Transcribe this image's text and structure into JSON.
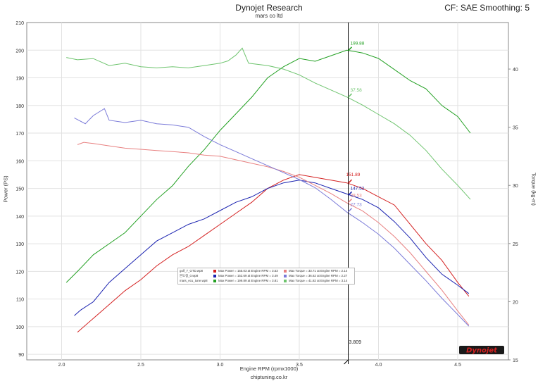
{
  "header": {
    "title": "Dynojet Research",
    "subtitle": "mars co ltd",
    "cf_label": "CF: SAE Smoothing: 5",
    "footer": "chiptuning.co.kr",
    "logo_text": "Dynojet"
  },
  "colors": {
    "red": "#d42020",
    "blue": "#1a22b0",
    "green": "#22a022",
    "red_light": "#e88080",
    "blue_light": "#7a7ad8",
    "green_light": "#6ec46e"
  },
  "chart_data": {
    "type": "line",
    "title": "Dynojet Research",
    "subtitle": "mars co ltd",
    "xlabel": "Engine RPM (rpmx1000)",
    "ylabel": "Power (PS)",
    "y2label": "Torque (kg-m)",
    "xlim": [
      1.78,
      4.82
    ],
    "ylim": [
      88,
      210
    ],
    "y2lim": [
      15,
      44
    ],
    "grid": true,
    "x_ticks": [
      "2.0",
      "2.5",
      "3.0",
      "3.5",
      "4.0",
      "4.5"
    ],
    "x_tick_values": [
      2.0,
      2.5,
      3.0,
      3.5,
      4.0,
      4.5
    ],
    "y_ticks": [
      "90",
      "100",
      "110",
      "120",
      "130",
      "140",
      "150",
      "160",
      "170",
      "180",
      "190",
      "200",
      "210"
    ],
    "y_tick_values": [
      90,
      100,
      110,
      120,
      130,
      140,
      150,
      160,
      170,
      180,
      190,
      200,
      210
    ],
    "y2_ticks": [
      "15",
      "20",
      "25",
      "30",
      "35",
      "40"
    ],
    "y2_tick_values": [
      15,
      20,
      25,
      30,
      35,
      40
    ],
    "cursor": {
      "rpm": 3.809,
      "label": "3.809"
    },
    "cursor_values": [
      {
        "label": "151.89",
        "y": 151.89,
        "axis": "left",
        "color": "#d42020"
      },
      {
        "label": "147.52",
        "y": 147.52,
        "axis": "left",
        "color": "#1a22b0"
      },
      {
        "label": "199.88",
        "y": 199.88,
        "axis": "left",
        "color": "#22a022"
      },
      {
        "label": "28.53",
        "y": 28.53,
        "axis": "right",
        "color": "#e88080"
      },
      {
        "label": "27.73",
        "y": 27.73,
        "axis": "right",
        "color": "#7a7ad8"
      },
      {
        "label": "37.58",
        "y": 37.58,
        "axis": "right",
        "color": "#6ec46e"
      }
    ],
    "legend": {
      "runs": [
        "golf_7_GTD.wp8",
        "본도정_0.wp8",
        "mars_ecu_tune.wp8"
      ],
      "power_text": [
        "Max Power = 155.03 at Engine RPM = 3.53",
        "Max Power = 152.69 at Engine RPM = 3.49",
        "Max Power = 199.89 at Engine RPM = 3.81"
      ],
      "torque_text": [
        "Max Torque = 33.71 at Engine RPM = 2.14",
        "Max Torque = 36.62 at Engine RPM = 2.27",
        "Max Torque = 41.82 at Engine RPM = 3.14"
      ],
      "placement": "lower-center"
    },
    "series": [
      {
        "name": "golf_7_GTD.wp8 Power",
        "axis": "left",
        "color": "#d42020",
        "x": [
          2.1,
          2.2,
          2.3,
          2.4,
          2.5,
          2.6,
          2.7,
          2.8,
          2.9,
          3.0,
          3.1,
          3.2,
          3.3,
          3.4,
          3.5,
          3.6,
          3.7,
          3.8,
          3.9,
          4.0,
          4.1,
          4.2,
          4.3,
          4.4,
          4.5,
          4.57
        ],
        "y": [
          98,
          103,
          108,
          113,
          117,
          122,
          126,
          129,
          133,
          137,
          141,
          145,
          150,
          153,
          155,
          154,
          153,
          152,
          150,
          147,
          144,
          137,
          130,
          124,
          116,
          111
        ]
      },
      {
        "name": "본도정_0.wp8 Power",
        "axis": "left",
        "color": "#1a22b0",
        "x": [
          2.08,
          2.12,
          2.2,
          2.3,
          2.4,
          2.5,
          2.6,
          2.7,
          2.8,
          2.9,
          3.0,
          3.1,
          3.2,
          3.3,
          3.4,
          3.5,
          3.6,
          3.7,
          3.8,
          3.9,
          4.0,
          4.1,
          4.2,
          4.3,
          4.4,
          4.5,
          4.57
        ],
        "y": [
          104,
          106,
          109,
          116,
          121,
          126,
          131,
          134,
          137,
          139,
          142,
          145,
          147,
          150,
          152,
          153,
          152,
          150,
          148,
          146,
          143,
          138,
          132,
          125,
          119,
          115,
          112
        ]
      },
      {
        "name": "mars_ecu_tune.wp8 Power",
        "axis": "left",
        "color": "#22a022",
        "x": [
          2.03,
          2.1,
          2.2,
          2.3,
          2.4,
          2.5,
          2.6,
          2.7,
          2.8,
          2.9,
          3.0,
          3.1,
          3.2,
          3.3,
          3.4,
          3.5,
          3.6,
          3.7,
          3.8,
          3.9,
          4.0,
          4.1,
          4.2,
          4.3,
          4.4,
          4.5,
          4.58
        ],
        "y": [
          116,
          120,
          126,
          130,
          134,
          140,
          146,
          151,
          158,
          164,
          171,
          177,
          183,
          190,
          194,
          197,
          196,
          198,
          200,
          199,
          197,
          193,
          189,
          186,
          180,
          176,
          170
        ]
      },
      {
        "name": "golf_7_GTD.wp8 Torque",
        "axis": "right",
        "color": "#e88080",
        "x": [
          2.1,
          2.14,
          2.2,
          2.3,
          2.4,
          2.5,
          2.6,
          2.7,
          2.8,
          2.9,
          3.0,
          3.1,
          3.2,
          3.3,
          3.4,
          3.5,
          3.6,
          3.7,
          3.8,
          3.9,
          4.0,
          4.1,
          4.2,
          4.3,
          4.4,
          4.5,
          4.57
        ],
        "y": [
          33.5,
          33.7,
          33.6,
          33.4,
          33.2,
          33.1,
          33.0,
          32.9,
          32.8,
          32.6,
          32.5,
          32.2,
          31.9,
          31.6,
          31.2,
          30.7,
          30.0,
          29.3,
          28.5,
          27.8,
          26.8,
          25.6,
          24.2,
          22.6,
          21.0,
          19.2,
          18.0
        ]
      },
      {
        "name": "본도정_0.wp8 Torque",
        "axis": "right",
        "color": "#7a7ad8",
        "x": [
          2.08,
          2.15,
          2.2,
          2.27,
          2.3,
          2.4,
          2.5,
          2.6,
          2.7,
          2.8,
          2.9,
          3.0,
          3.1,
          3.2,
          3.3,
          3.4,
          3.5,
          3.6,
          3.7,
          3.8,
          3.9,
          4.0,
          4.1,
          4.2,
          4.3,
          4.4,
          4.5,
          4.57
        ],
        "y": [
          35.8,
          35.3,
          36.0,
          36.6,
          35.6,
          35.4,
          35.6,
          35.3,
          35.2,
          35.0,
          34.2,
          33.5,
          32.9,
          32.3,
          31.7,
          31.1,
          30.5,
          29.8,
          28.8,
          27.7,
          26.8,
          25.8,
          24.6,
          23.2,
          21.8,
          20.3,
          18.9,
          17.9
        ]
      },
      {
        "name": "mars_ecu_tune.wp8 Torque",
        "axis": "right",
        "color": "#6ec46e",
        "x": [
          2.03,
          2.1,
          2.2,
          2.3,
          2.4,
          2.5,
          2.6,
          2.7,
          2.8,
          2.9,
          3.0,
          3.05,
          3.1,
          3.14,
          3.18,
          3.3,
          3.4,
          3.5,
          3.6,
          3.7,
          3.8,
          3.9,
          4.0,
          4.1,
          4.2,
          4.3,
          4.4,
          4.5,
          4.58
        ],
        "y": [
          41.0,
          40.8,
          40.9,
          40.3,
          40.5,
          40.2,
          40.1,
          40.2,
          40.1,
          40.3,
          40.5,
          40.7,
          41.2,
          41.8,
          40.5,
          40.3,
          40.0,
          39.5,
          38.8,
          38.2,
          37.6,
          36.9,
          36.1,
          35.3,
          34.3,
          33.0,
          31.4,
          30.0,
          28.8
        ]
      }
    ]
  }
}
